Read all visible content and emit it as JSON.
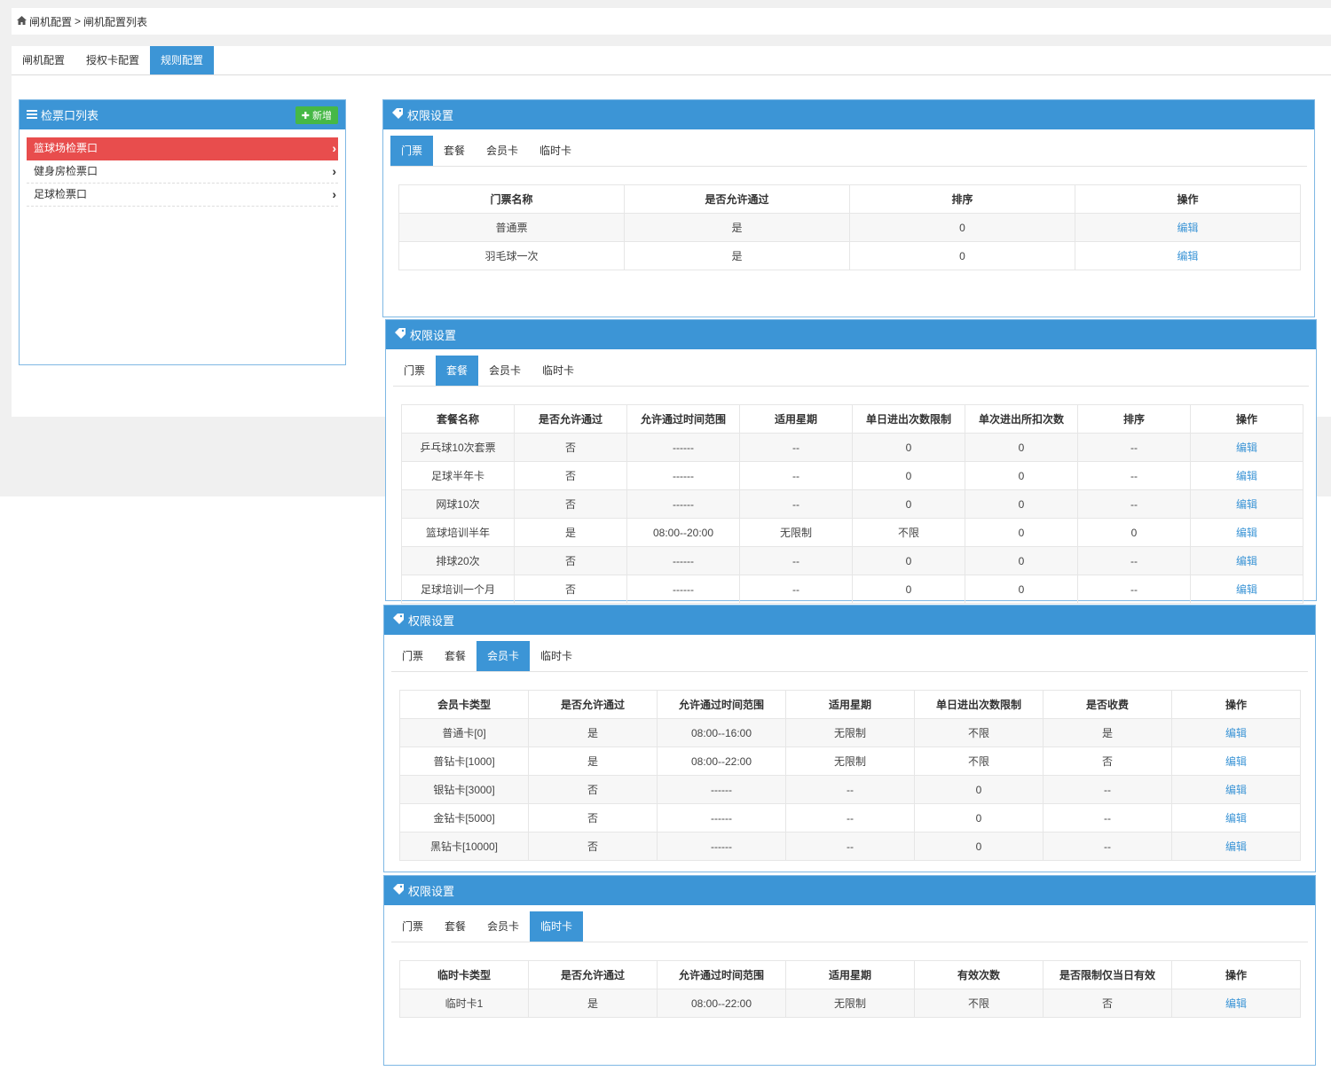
{
  "breadcrumb": {
    "home": "闸机配置",
    "sep": ">",
    "current": "闸机配置列表"
  },
  "top_tabs": [
    {
      "label": "闸机配置",
      "active": false
    },
    {
      "label": "授权卡配置",
      "active": false
    },
    {
      "label": "规则配置",
      "active": true
    }
  ],
  "left_panel": {
    "title": "检票口列表",
    "add_label": "新增",
    "items": [
      "篮球场检票口",
      "健身房检票口",
      "足球检票口"
    ]
  },
  "perm_tab_labels": [
    "门票",
    "套餐",
    "会员卡",
    "临时卡"
  ],
  "edit_label": "编辑",
  "panels": [
    {
      "title": "权限设置",
      "active_tab": 0,
      "headers": [
        "门票名称",
        "是否允许通过",
        "排序",
        "操作"
      ],
      "rows": [
        [
          "普通票",
          "是",
          "0"
        ],
        [
          "羽毛球一次",
          "是",
          "0"
        ]
      ]
    },
    {
      "title": "权限设置",
      "active_tab": 1,
      "headers": [
        "套餐名称",
        "是否允许通过",
        "允许通过时间范围",
        "适用星期",
        "单日进出次数限制",
        "单次进出所扣次数",
        "排序",
        "操作"
      ],
      "rows": [
        [
          "乒乓球10次套票",
          "否",
          "------",
          "--",
          "0",
          "0",
          "--"
        ],
        [
          "足球半年卡",
          "否",
          "------",
          "--",
          "0",
          "0",
          "--"
        ],
        [
          "网球10次",
          "否",
          "------",
          "--",
          "0",
          "0",
          "--"
        ],
        [
          "篮球培训半年",
          "是",
          "08:00--20:00",
          "无限制",
          "不限",
          "0",
          "0"
        ],
        [
          "排球20次",
          "否",
          "------",
          "--",
          "0",
          "0",
          "--"
        ],
        [
          "足球培训一个月",
          "否",
          "------",
          "--",
          "0",
          "0",
          "--"
        ]
      ]
    },
    {
      "title": "权限设置",
      "active_tab": 2,
      "headers": [
        "会员卡类型",
        "是否允许通过",
        "允许通过时间范围",
        "适用星期",
        "单日进出次数限制",
        "是否收费",
        "操作"
      ],
      "rows": [
        [
          "普通卡[0]",
          "是",
          "08:00--16:00",
          "无限制",
          "不限",
          "是"
        ],
        [
          "普钻卡[1000]",
          "是",
          "08:00--22:00",
          "无限制",
          "不限",
          "否"
        ],
        [
          "银钻卡[3000]",
          "否",
          "------",
          "--",
          "0",
          "--"
        ],
        [
          "金钻卡[5000]",
          "否",
          "------",
          "--",
          "0",
          "--"
        ],
        [
          "黑钻卡[10000]",
          "否",
          "------",
          "--",
          "0",
          "--"
        ]
      ]
    },
    {
      "title": "权限设置",
      "active_tab": 3,
      "headers": [
        "临时卡类型",
        "是否允许通过",
        "允许通过时间范围",
        "适用星期",
        "有效次数",
        "是否限制仅当日有效",
        "操作"
      ],
      "rows": [
        [
          "临时卡1",
          "是",
          "08:00--22:00",
          "无限制",
          "不限",
          "否"
        ]
      ]
    }
  ],
  "colors": {
    "accent": "#3c95d6",
    "danger": "#e84d4d",
    "success": "#46b846"
  },
  "icons": {
    "home": "home-icon",
    "list": "list-icon",
    "plus": "plus-icon",
    "tag": "tag-icon",
    "chevron": "chevron-right-icon"
  }
}
